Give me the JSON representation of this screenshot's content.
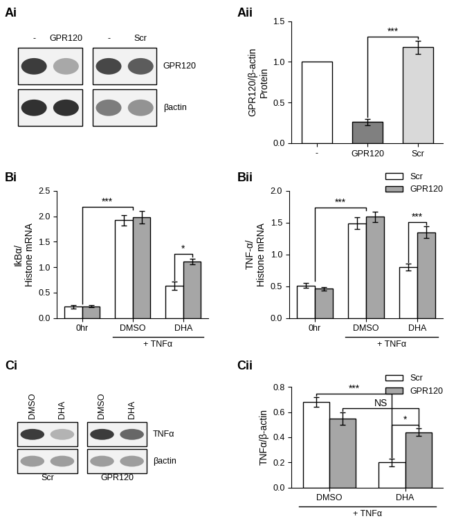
{
  "chart_data": [
    {
      "panel": "Aii",
      "type": "bar",
      "categories": [
        "-",
        "GPR120",
        "Scr"
      ],
      "values": [
        1.0,
        0.26,
        1.18
      ],
      "errors": [
        null,
        0.04,
        0.08
      ],
      "colors": [
        "#ffffff",
        "#808080",
        "#d9d9d9"
      ],
      "y_label": "GPR120/β-actin\nProtein",
      "ylim": [
        0,
        1.5
      ],
      "yticks": [
        {
          "value": 0,
          "label": "0.0"
        },
        {
          "value": 0.5,
          "label": "0.5"
        },
        {
          "value": 1,
          "label": "1.0"
        },
        {
          "value": 1.5,
          "label": "1.5"
        }
      ],
      "significance": [
        {
          "text": "***",
          "from": {
            "category": "GPR120"
          },
          "to": {
            "category": "Scr"
          }
        }
      ]
    },
    {
      "panel": "Bi",
      "type": "bar",
      "categories": [
        "0hr",
        "DMSO",
        "DHA"
      ],
      "series": [
        {
          "name": "Scr",
          "color": "#ffffff",
          "values": [
            0.22,
            1.92,
            0.63
          ],
          "errors": [
            0.03,
            0.1,
            0.08
          ]
        },
        {
          "name": "GPR120",
          "color": "#a6a6a6",
          "values": [
            0.23,
            1.98,
            1.11
          ],
          "errors": [
            0.02,
            0.12,
            0.06
          ]
        }
      ],
      "y_label": "IkBα/\nHistone mRNA",
      "ylim": [
        0,
        2.5
      ],
      "yticks": [
        {
          "value": 0,
          "label": "0.0"
        },
        {
          "value": 0.5,
          "label": "0.5"
        },
        {
          "value": 1,
          "label": "1.0"
        },
        {
          "value": 1.5,
          "label": "1.5"
        },
        {
          "value": 2,
          "label": "2.0"
        },
        {
          "value": 2.5,
          "label": "2.5"
        }
      ],
      "group_label": {
        "text": "+ TNFα",
        "categories": [
          "DMSO",
          "DHA"
        ]
      },
      "significance": [
        {
          "text": "***",
          "from": {
            "category": "0hr"
          },
          "to": {
            "category": "DMSO"
          }
        },
        {
          "text": "*",
          "from": {
            "category": "DHA",
            "series": "Scr"
          },
          "to": {
            "category": "DHA",
            "series": "GPR120"
          }
        }
      ]
    },
    {
      "panel": "Bii",
      "type": "bar",
      "categories": [
        "0hr",
        "DMSO",
        "DHA"
      ],
      "series": [
        {
          "name": "Scr",
          "color": "#ffffff",
          "values": [
            0.51,
            1.49,
            0.8
          ],
          "errors": [
            0.04,
            0.09,
            0.05
          ]
        },
        {
          "name": "GPR120",
          "color": "#a6a6a6",
          "values": [
            0.46,
            1.59,
            1.35
          ],
          "errors": [
            0.03,
            0.08,
            0.09
          ]
        }
      ],
      "y_label": "TNF-α/\nHistone mRNA",
      "ylim": [
        0,
        2
      ],
      "yticks": [
        {
          "value": 0,
          "label": "0.0"
        },
        {
          "value": 0.5,
          "label": "0.5"
        },
        {
          "value": 1,
          "label": "1.0"
        },
        {
          "value": 1.5,
          "label": "1.5"
        },
        {
          "value": 2,
          "label": "2.0"
        }
      ],
      "legend": "upper right",
      "group_label": {
        "text": "+ TNFα",
        "categories": [
          "DMSO",
          "DHA"
        ]
      },
      "significance": [
        {
          "text": "***",
          "from": {
            "category": "0hr"
          },
          "to": {
            "category": "DMSO"
          }
        },
        {
          "text": "***",
          "from": {
            "category": "DHA",
            "series": "Scr"
          },
          "to": {
            "category": "DHA",
            "series": "GPR120"
          }
        }
      ]
    },
    {
      "panel": "Cii",
      "type": "bar",
      "categories": [
        "DMSO",
        "DHA"
      ],
      "series": [
        {
          "name": "Scr",
          "color": "#ffffff",
          "values": [
            0.68,
            0.2
          ],
          "errors": [
            0.04,
            0.03
          ]
        },
        {
          "name": "GPR120",
          "color": "#a6a6a6",
          "values": [
            0.55,
            0.44
          ],
          "errors": [
            0.05,
            0.03
          ]
        }
      ],
      "y_label": "TNFα/β-actin",
      "ylim": [
        0,
        0.8
      ],
      "yticks": [
        {
          "value": 0,
          "label": "0.0"
        },
        {
          "value": 0.2,
          "label": "0.2"
        },
        {
          "value": 0.4,
          "label": "0.4"
        },
        {
          "value": 0.6,
          "label": "0.6"
        },
        {
          "value": 0.8,
          "label": "0.8"
        }
      ],
      "legend": "upper right",
      "group_label": {
        "text": "+ TNFα",
        "categories": [
          "DMSO",
          "DHA"
        ]
      },
      "significance": [
        {
          "text": "***",
          "from": {
            "category": "DMSO",
            "series": "Scr"
          },
          "to": {
            "category": "DHA",
            "series": "Scr"
          }
        },
        {
          "text": "NS",
          "from": {
            "category": "DMSO",
            "series": "GPR120"
          },
          "to": {
            "category": "DHA",
            "series": "GPR120"
          }
        },
        {
          "text": "*",
          "from": {
            "category": "DHA",
            "series": "Scr"
          },
          "to": {
            "category": "DHA",
            "series": "GPR120"
          }
        }
      ]
    }
  ],
  "blots": [
    {
      "panel": "Ai",
      "rows": [
        "GPR120",
        "βactin"
      ],
      "boxes": [
        {
          "columns": [
            "-",
            "GPR120"
          ],
          "bands": [
            [
              0.9,
              0.4
            ],
            [
              0.95,
              0.95
            ]
          ]
        },
        {
          "columns": [
            "-",
            "Scr"
          ],
          "bands": [
            [
              0.85,
              0.75
            ],
            [
              0.6,
              0.5
            ]
          ]
        }
      ]
    },
    {
      "panel": "Ci",
      "rows": [
        "TNFα",
        "βactin"
      ],
      "boxes": [
        {
          "caption": "Scr",
          "columns": [
            "DMSO",
            "DHA"
          ],
          "bands": [
            [
              0.9,
              0.35
            ],
            [
              0.45,
              0.45
            ]
          ]
        },
        {
          "caption": "GPR120",
          "columns": [
            "DMSO",
            "DHA"
          ],
          "bands": [
            [
              0.9,
              0.7
            ],
            [
              0.45,
              0.45
            ]
          ]
        }
      ]
    }
  ]
}
